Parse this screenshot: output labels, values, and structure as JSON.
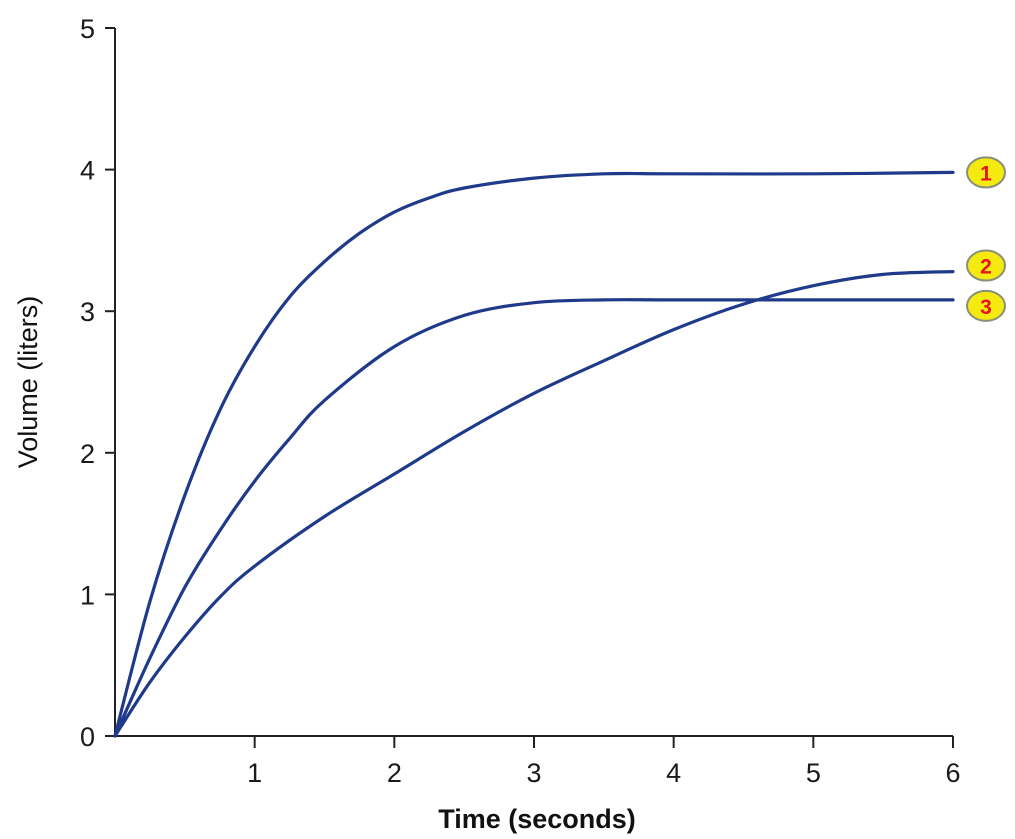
{
  "chart_data": {
    "type": "line",
    "xlabel": "Time (seconds)",
    "ylabel": "Volume (liters)",
    "xlim": [
      0,
      6
    ],
    "ylim": [
      0,
      5
    ],
    "x_ticks": [
      1,
      2,
      3,
      4,
      5,
      6
    ],
    "y_ticks": [
      0,
      1,
      2,
      3,
      4,
      5
    ],
    "grid": false,
    "line_color": "#1f3a8a",
    "badge_fill": "#f5ea0f",
    "badge_stroke": "#8a8f7a",
    "badge_text_color": "#e8141e",
    "series": [
      {
        "name": "1",
        "x": [
          0,
          0.25,
          0.5,
          0.75,
          1,
          1.25,
          1.5,
          1.75,
          2,
          2.25,
          2.5,
          3,
          3.5,
          4,
          5,
          6
        ],
        "y": [
          0,
          0.95,
          1.7,
          2.3,
          2.75,
          3.1,
          3.35,
          3.55,
          3.7,
          3.8,
          3.87,
          3.94,
          3.97,
          3.97,
          3.97,
          3.98
        ]
      },
      {
        "name": "2",
        "x": [
          0,
          0.25,
          0.5,
          0.75,
          1,
          1.5,
          2,
          2.5,
          3,
          3.5,
          4,
          4.5,
          5,
          5.5,
          6
        ],
        "y": [
          0,
          0.38,
          0.7,
          0.98,
          1.2,
          1.55,
          1.85,
          2.15,
          2.42,
          2.65,
          2.87,
          3.05,
          3.18,
          3.26,
          3.28
        ]
      },
      {
        "name": "3",
        "x": [
          0,
          0.25,
          0.5,
          0.75,
          1,
          1.25,
          1.5,
          2,
          2.5,
          3,
          3.5,
          4,
          5,
          6
        ],
        "y": [
          0,
          0.55,
          1.05,
          1.45,
          1.8,
          2.1,
          2.37,
          2.75,
          2.97,
          3.06,
          3.08,
          3.08,
          3.08,
          3.08
        ]
      }
    ]
  }
}
